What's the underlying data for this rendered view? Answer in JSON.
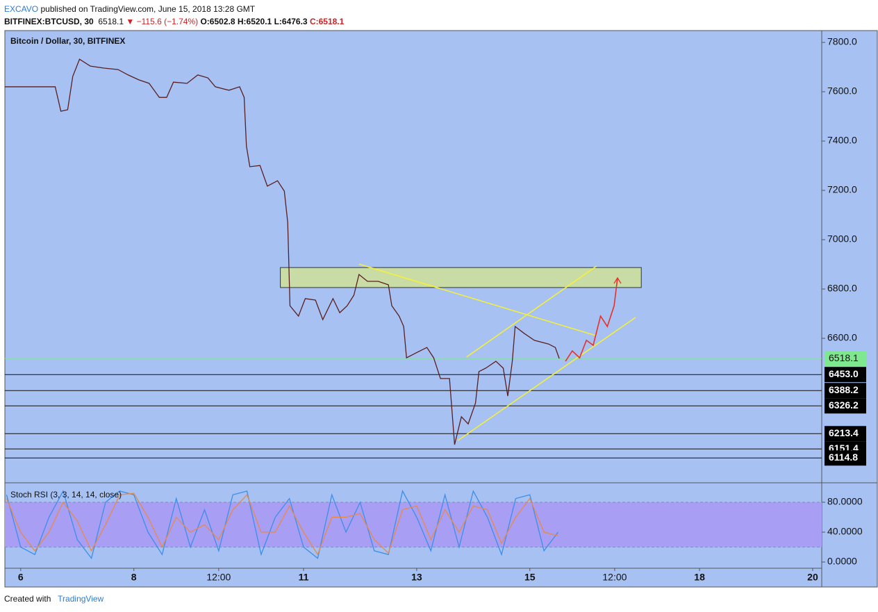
{
  "header": {
    "author": "EXCAVO",
    "published": "published on TradingView.com, June 15, 2018 13:28 GMT",
    "symbol": "BITFINEX:BTCUSD, 30",
    "last": "6518.1",
    "change": "▼ −115.6 (−1.74%)",
    "open": "O:6502.8",
    "high": "H:6520.1",
    "low": "L:6476.3",
    "close": "C:6518.1"
  },
  "chart_data": [
    {
      "type": "line",
      "title": "Bitcoin / Dollar, 30, BITFINEX",
      "x": [
        5.72,
        6.25,
        6.61,
        6.71,
        6.83,
        6.92,
        7.04,
        7.23,
        7.47,
        7.72,
        7.9,
        8.09,
        8.27,
        8.45,
        8.58,
        8.7,
        8.94,
        9.13,
        9.31,
        9.44,
        9.68,
        9.87,
        9.95,
        9.99,
        10.05,
        10.23,
        10.36,
        10.54,
        10.66,
        10.72,
        10.76,
        10.91,
        11.03,
        11.21,
        11.34,
        11.52,
        11.64,
        11.77,
        11.89,
        11.98,
        12.13,
        12.32,
        12.5,
        12.56,
        12.69,
        12.77,
        12.82,
        12.99,
        13.18,
        13.3,
        13.42,
        13.58,
        13.67,
        13.79,
        13.91,
        14.04,
        14.1,
        14.22,
        14.4,
        14.53,
        14.61,
        14.69,
        14.74,
        14.9,
        15.08,
        15.33,
        15.45,
        15.52
      ],
      "series": [
        {
          "color": "#5a1e1e",
          "values": [
            7620,
            7620,
            7620,
            7521,
            7527,
            7662,
            7732,
            7704,
            7696,
            7690,
            7668,
            7648,
            7634,
            7577,
            7577,
            7639,
            7634,
            7668,
            7656,
            7620,
            7606,
            7620,
            7577,
            7380,
            7296,
            7301,
            7217,
            7239,
            7197,
            7070,
            6732,
            6690,
            6761,
            6755,
            6676,
            6761,
            6704,
            6732,
            6775,
            6859,
            6831,
            6831,
            6817,
            6732,
            6690,
            6648,
            6521,
            6541,
            6563,
            6521,
            6437,
            6437,
            6169,
            6282,
            6253,
            6338,
            6465,
            6479,
            6507,
            6479,
            6366,
            6507,
            6648,
            6620,
            6592,
            6577,
            6563,
            6518
          ]
        }
      ],
      "xlim": [
        5.72,
        20.16
      ],
      "ylim": [
        6017,
        7848
      ],
      "yticks": [
        {
          "value": 6600,
          "label": "6600.0"
        },
        {
          "value": 6800,
          "label": "6800.0"
        },
        {
          "value": 7000,
          "label": "7000.0"
        },
        {
          "value": 7200,
          "label": "7200.0"
        },
        {
          "value": 7400,
          "label": "7400.0"
        },
        {
          "value": 7600,
          "label": "7600.0"
        },
        {
          "value": 7800,
          "label": "7800.0"
        }
      ],
      "price_line": {
        "value": 6518.1,
        "color": "#7ee88f"
      },
      "levels": [
        {
          "value": 6453,
          "label": "6453.0"
        },
        {
          "value": 6388.2,
          "label": "6388.2"
        },
        {
          "value": 6326.2,
          "label": "6326.2"
        },
        {
          "value": 6213.4,
          "label": "6213.4"
        },
        {
          "value": 6151.4,
          "label": "6151.4"
        },
        {
          "value": 6114.8,
          "label": "6114.8"
        }
      ],
      "zones": [
        {
          "x": [
            10.59,
            16.97
          ],
          "y": [
            6806,
            6887
          ],
          "color": "#c9dca6"
        }
      ],
      "trendlines": [
        {
          "x": [
            11.98,
            16.17
          ],
          "y": [
            6901,
            6611
          ],
          "color": "#f5f03a"
        },
        {
          "x": [
            13.73,
            16.87
          ],
          "y": [
            6186,
            6685
          ],
          "color": "#f5f03a"
        },
        {
          "x": [
            13.88,
            16.18
          ],
          "y": [
            6524,
            6893
          ],
          "color": "#f5f03a"
        },
        {
          "x": [
            15.63,
            15.75,
            15.88,
            16.0,
            16.12,
            16.25,
            16.37,
            16.49,
            16.55
          ],
          "y": [
            6507,
            6549,
            6521,
            6592,
            6572,
            6690,
            6648,
            6732,
            6845
          ],
          "color": "#e8302a"
        }
      ]
    },
    {
      "type": "line",
      "title": "Stoch RSI (3, 3, 14, 14, close)",
      "x": [
        5.75,
        6,
        6.25,
        6.5,
        6.75,
        7,
        7.25,
        7.5,
        7.75,
        8,
        8.25,
        8.5,
        8.75,
        9,
        9.25,
        9.5,
        9.75,
        10,
        10.25,
        10.5,
        10.75,
        11,
        11.25,
        11.5,
        11.75,
        12,
        12.25,
        12.5,
        12.75,
        13,
        13.25,
        13.5,
        13.75,
        14,
        14.25,
        14.5,
        14.75,
        15,
        15.25,
        15.5
      ],
      "series": [
        {
          "color": "#3d8ee8",
          "values": [
            90,
            20,
            10,
            60,
            95,
            30,
            5,
            80,
            95,
            90,
            40,
            10,
            85,
            20,
            70,
            15,
            90,
            95,
            10,
            60,
            85,
            20,
            5,
            90,
            40,
            80,
            15,
            10,
            95,
            60,
            15,
            90,
            20,
            95,
            60,
            10,
            85,
            90,
            15,
            40
          ]
        },
        {
          "color": "#e8894a",
          "values": [
            85,
            40,
            15,
            40,
            80,
            55,
            15,
            50,
            90,
            92,
            60,
            20,
            60,
            40,
            50,
            30,
            70,
            90,
            40,
            40,
            75,
            40,
            10,
            60,
            60,
            65,
            30,
            12,
            70,
            75,
            30,
            70,
            40,
            75,
            70,
            25,
            60,
            85,
            40,
            35
          ]
        }
      ],
      "band": [
        20,
        80
      ],
      "band_color": "#a89ef4",
      "xlim": [
        5.72,
        20.16
      ],
      "ylim": [
        -7.4,
        104.2
      ],
      "yticks": [
        {
          "value": 0,
          "label": "0.0000"
        },
        {
          "value": 40,
          "label": "40.0000"
        },
        {
          "value": 80,
          "label": "80.0000"
        }
      ],
      "xticks": [
        6,
        8,
        {
          "value": 9.5,
          "label": "12:00"
        },
        11,
        13,
        15,
        {
          "value": 16.5,
          "label": "12:00"
        },
        18,
        20
      ]
    }
  ],
  "footer": {
    "created": "Created with",
    "brand": "TradingView"
  }
}
